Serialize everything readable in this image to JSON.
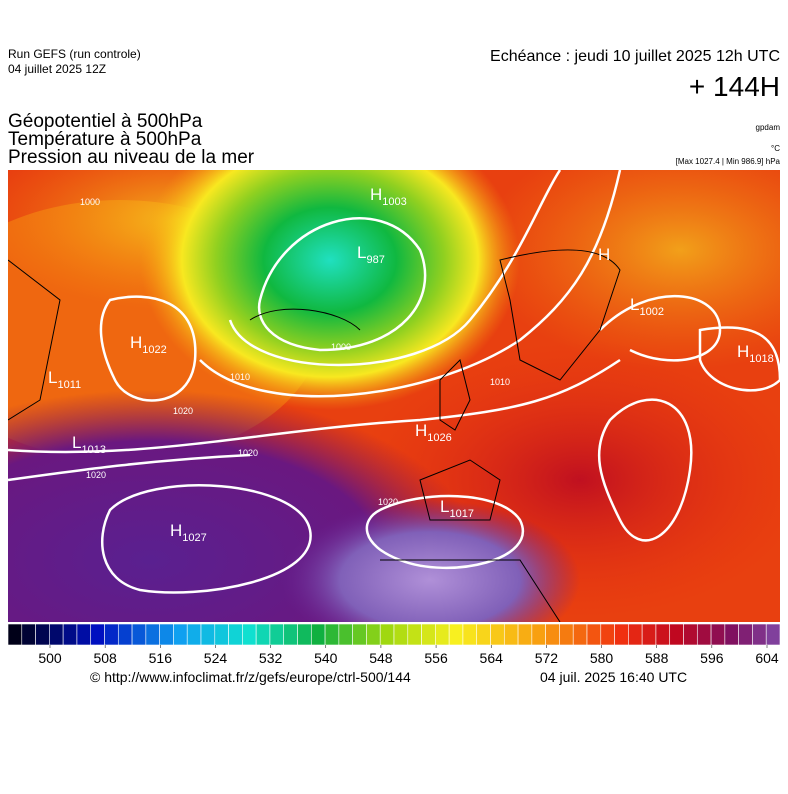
{
  "header": {
    "run": "Run GEFS (run controle)",
    "run_date": "04 juillet 2025 12Z",
    "valid": "Echéance : jeudi 10 juillet 2025 12h UTC",
    "lead": "+ 144H",
    "titles": [
      "Géopotentiel à 500hPa",
      "Température à 500hPa",
      "Pression au niveau de la mer"
    ],
    "units": [
      "gpdam",
      "°C",
      "[Max 1027.4 | Min 986.9] hPa"
    ]
  },
  "map": {
    "centers": [
      {
        "letter": "H",
        "value": 1003
      },
      {
        "letter": "L",
        "value": 987
      },
      {
        "letter": "H"
      },
      {
        "letter": "L",
        "value": 1002
      },
      {
        "letter": "H",
        "value": 1018
      },
      {
        "letter": "H",
        "value": 1022
      },
      {
        "letter": "L",
        "value": 1011
      },
      {
        "letter": "L",
        "value": 1013
      },
      {
        "letter": "H",
        "value": 1026
      },
      {
        "letter": "L",
        "value": 1017
      },
      {
        "letter": "H",
        "value": 1027
      }
    ],
    "isobar_labels": [
      1000,
      1010,
      1020,
      1020,
      1020,
      1020,
      1010,
      1000
    ]
  },
  "colorbar": {
    "ticks": [
      500,
      508,
      516,
      524,
      532,
      540,
      548,
      556,
      564,
      572,
      580,
      588,
      596,
      604
    ]
  },
  "footer": {
    "source": "© http://www.infoclimat.fr/z/gefs/europe/ctrl-500/144",
    "generated": "04 juil. 2025 16:40 UTC"
  }
}
